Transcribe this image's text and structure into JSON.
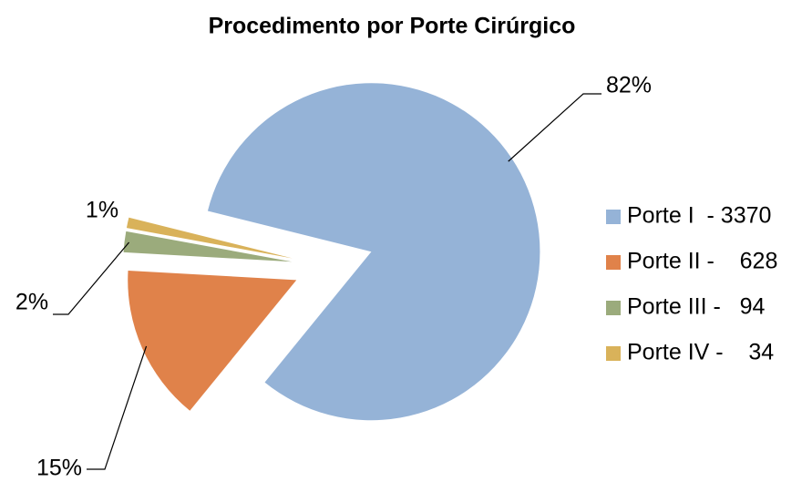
{
  "chart_data": {
    "type": "pie",
    "title": "Procedimento por Porte Cirúrgico",
    "categories": [
      "Porte I  - 3370",
      "Porte II -    628",
      "Porte III -   94",
      "Porte IV -    34"
    ],
    "values": [
      82,
      15,
      2,
      1
    ],
    "value_labels": [
      "82%",
      "15%",
      "2%",
      "1%"
    ],
    "colors": [
      "#95b3d7",
      "#e0824a",
      "#9bab7c",
      "#d9b25a"
    ],
    "legend": "right"
  }
}
